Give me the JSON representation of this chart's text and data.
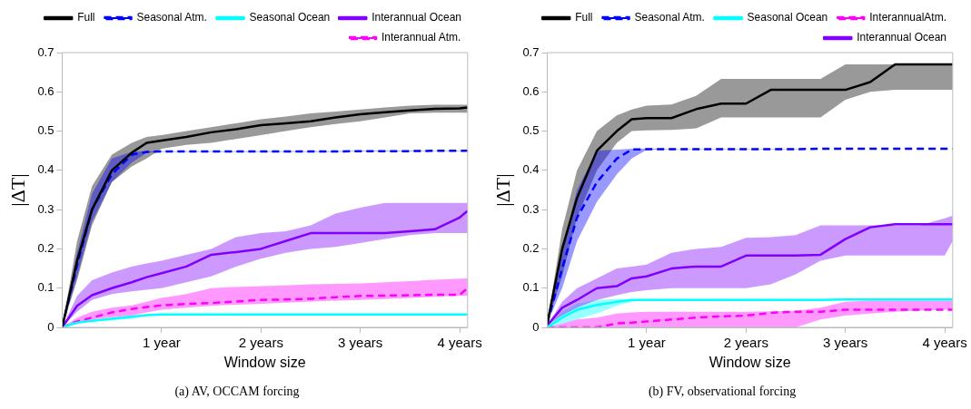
{
  "chart_data": [
    {
      "type": "line",
      "title": "(a) AV, OCCAM forcing",
      "xlabel": "Window size",
      "ylabel": "|ΔT|",
      "x": [
        0,
        0.15,
        0.3,
        0.5,
        0.7,
        0.85,
        1,
        1.25,
        1.5,
        1.75,
        2,
        2.25,
        2.5,
        2.75,
        3,
        3.25,
        3.5,
        3.75,
        4,
        4.08
      ],
      "xlim": [
        0,
        4.08
      ],
      "xticks": [
        {
          "value": 1,
          "label": "1 year"
        },
        {
          "value": 2,
          "label": "2 years"
        },
        {
          "value": 3,
          "label": "3 years"
        },
        {
          "value": 4,
          "label": "4 years"
        }
      ],
      "ylim": [
        0,
        0.7
      ],
      "yticks": [
        0,
        0.1,
        0.2,
        0.3,
        0.4,
        0.5,
        0.6,
        0.7
      ],
      "grid": false,
      "legend": "top right",
      "marker": "none",
      "series": [
        {
          "name": "Full",
          "color": "#000000",
          "line_style": "solid",
          "values": [
            0,
            0.17,
            0.3,
            0.4,
            0.445,
            0.47,
            0.476,
            0.485,
            0.497,
            0.505,
            0.515,
            0.52,
            0.525,
            0.535,
            0.543,
            0.548,
            0.553,
            0.557,
            0.558,
            0.56
          ],
          "upper": [
            0,
            0.22,
            0.36,
            0.44,
            0.47,
            0.485,
            0.49,
            0.5,
            0.51,
            0.52,
            0.53,
            0.537,
            0.545,
            0.55,
            0.555,
            0.56,
            0.565,
            0.567,
            0.567,
            0.567
          ],
          "lower": [
            0,
            0.12,
            0.26,
            0.37,
            0.41,
            0.43,
            0.455,
            0.465,
            0.47,
            0.48,
            0.49,
            0.5,
            0.51,
            0.518,
            0.525,
            0.535,
            0.545,
            0.547,
            0.547,
            0.547
          ]
        },
        {
          "name": "Seasonal Atm.",
          "color": "#0000ff",
          "line_style": "dashed",
          "values": [
            0,
            0.16,
            0.3,
            0.39,
            0.44,
            0.447,
            0.448,
            0.448,
            0.448,
            0.448,
            0.448,
            0.448,
            0.448,
            0.448,
            0.449,
            0.449,
            0.449,
            0.45,
            0.45,
            0.45
          ],
          "upper": [
            0,
            0.19,
            0.34,
            0.43,
            0.447,
            0.449,
            0.449,
            0.449,
            0.449,
            0.449,
            0.449,
            0.449,
            0.449,
            0.449,
            0.45,
            0.45,
            0.45,
            0.45,
            0.45,
            0.45
          ],
          "lower": [
            0,
            0.13,
            0.27,
            0.37,
            0.42,
            0.445,
            0.447,
            0.447,
            0.447,
            0.447,
            0.447,
            0.447,
            0.447,
            0.447,
            0.448,
            0.448,
            0.448,
            0.449,
            0.449,
            0.449
          ]
        },
        {
          "name": "Seasonal Ocean",
          "color": "#00ffff",
          "line_style": "solid",
          "values": [
            0,
            0.012,
            0.017,
            0.022,
            0.027,
            0.031,
            0.033,
            0.033,
            0.033,
            0.033,
            0.033,
            0.033,
            0.033,
            0.033,
            0.033,
            0.033,
            0.033,
            0.033,
            0.033,
            0.033
          ],
          "upper": [
            0,
            0.014,
            0.019,
            0.025,
            0.03,
            0.032,
            0.033,
            0.033,
            0.033,
            0.033,
            0.033,
            0.033,
            0.033,
            0.033,
            0.033,
            0.033,
            0.033,
            0.033,
            0.033,
            0.033
          ],
          "lower": [
            0,
            0.01,
            0.015,
            0.018,
            0.022,
            0.03,
            0.033,
            0.033,
            0.033,
            0.033,
            0.033,
            0.033,
            0.033,
            0.033,
            0.033,
            0.033,
            0.033,
            0.033,
            0.033,
            0.033
          ]
        },
        {
          "name": "Interannual Ocean",
          "color": "#8000ff",
          "line_style": "solid",
          "values": [
            0,
            0.055,
            0.082,
            0.1,
            0.115,
            0.128,
            0.138,
            0.155,
            0.185,
            0.192,
            0.2,
            0.22,
            0.24,
            0.24,
            0.24,
            0.24,
            0.245,
            0.25,
            0.28,
            0.297
          ],
          "upper": [
            0,
            0.08,
            0.12,
            0.14,
            0.155,
            0.163,
            0.17,
            0.185,
            0.2,
            0.23,
            0.24,
            0.245,
            0.26,
            0.29,
            0.305,
            0.317,
            0.317,
            0.317,
            0.317,
            0.317
          ],
          "lower": [
            0,
            0.04,
            0.07,
            0.085,
            0.092,
            0.096,
            0.1,
            0.115,
            0.13,
            0.155,
            0.175,
            0.19,
            0.2,
            0.205,
            0.215,
            0.225,
            0.235,
            0.24,
            0.24,
            0.24
          ]
        },
        {
          "name": "Interannual Atm.",
          "color": "#ff00ff",
          "line_style": "dashed",
          "values": [
            0,
            0.015,
            0.025,
            0.038,
            0.047,
            0.052,
            0.056,
            0.06,
            0.062,
            0.066,
            0.07,
            0.071,
            0.073,
            0.077,
            0.08,
            0.081,
            0.082,
            0.083,
            0.083,
            0.1
          ],
          "upper": [
            0,
            0.025,
            0.04,
            0.05,
            0.056,
            0.065,
            0.075,
            0.085,
            0.1,
            0.103,
            0.105,
            0.107,
            0.11,
            0.111,
            0.112,
            0.115,
            0.118,
            0.121,
            0.124,
            0.125
          ],
          "lower": [
            0,
            0.01,
            0.02,
            0.026,
            0.03,
            0.038,
            0.045,
            0.05,
            0.055,
            0.058,
            0.06,
            0.063,
            0.066,
            0.068,
            0.07,
            0.072,
            0.075,
            0.078,
            0.08,
            0.08
          ]
        }
      ]
    },
    {
      "type": "line",
      "title": "(b) FV, observational forcing",
      "xlabel": "Window size",
      "ylabel": "|ΔT|",
      "x": [
        0,
        0.15,
        0.3,
        0.5,
        0.7,
        0.85,
        1,
        1.25,
        1.5,
        1.75,
        2,
        2.25,
        2.5,
        2.75,
        3,
        3.25,
        3.5,
        3.75,
        4,
        4.08
      ],
      "xlim": [
        0,
        4.08
      ],
      "xticks": [
        {
          "value": 1,
          "label": "1 year"
        },
        {
          "value": 2,
          "label": "2 years"
        },
        {
          "value": 3,
          "label": "3 years"
        },
        {
          "value": 4,
          "label": "4 years"
        }
      ],
      "ylim": [
        0,
        0.7
      ],
      "yticks": [
        0,
        0.1,
        0.2,
        0.3,
        0.4,
        0.5,
        0.6,
        0.7
      ],
      "grid": false,
      "legend": "top right",
      "marker": "none",
      "series": [
        {
          "name": "Full",
          "color": "#000000",
          "line_style": "solid",
          "values": [
            0.01,
            0.2,
            0.33,
            0.45,
            0.5,
            0.53,
            0.533,
            0.533,
            0.556,
            0.57,
            0.57,
            0.605,
            0.605,
            0.605,
            0.605,
            0.625,
            0.67,
            0.67,
            0.67,
            0.67
          ],
          "upper": [
            0.01,
            0.25,
            0.4,
            0.5,
            0.54,
            0.555,
            0.565,
            0.568,
            0.59,
            0.633,
            0.633,
            0.633,
            0.633,
            0.633,
            0.67,
            0.67,
            0.67,
            0.67,
            0.67,
            0.67
          ],
          "lower": [
            0.01,
            0.13,
            0.28,
            0.4,
            0.47,
            0.5,
            0.502,
            0.503,
            0.507,
            0.535,
            0.535,
            0.535,
            0.535,
            0.535,
            0.58,
            0.6,
            0.605,
            0.605,
            0.605,
            0.605
          ]
        },
        {
          "name": "Seasonal Atm.",
          "color": "#0000ff",
          "line_style": "dashed",
          "values": [
            0.01,
            0.15,
            0.28,
            0.37,
            0.43,
            0.453,
            0.454,
            0.454,
            0.454,
            0.454,
            0.454,
            0.454,
            0.454,
            0.455,
            0.455,
            0.455,
            0.455,
            0.455,
            0.455,
            0.455
          ],
          "upper": [
            0.01,
            0.2,
            0.35,
            0.45,
            0.453,
            0.455,
            0.455,
            0.455,
            0.455,
            0.455,
            0.455,
            0.455,
            0.455,
            0.455,
            0.455,
            0.455,
            0.455,
            0.455,
            0.455,
            0.455
          ],
          "lower": [
            0.01,
            0.1,
            0.22,
            0.32,
            0.39,
            0.43,
            0.452,
            0.454,
            0.454,
            0.454,
            0.454,
            0.454,
            0.454,
            0.455,
            0.455,
            0.455,
            0.455,
            0.455,
            0.455,
            0.455
          ]
        },
        {
          "name": "Seasonal Ocean",
          "color": "#00ffff",
          "line_style": "solid",
          "values": [
            0,
            0.025,
            0.045,
            0.057,
            0.065,
            0.07,
            0.07,
            0.07,
            0.07,
            0.07,
            0.07,
            0.07,
            0.07,
            0.07,
            0.071,
            0.071,
            0.071,
            0.071,
            0.071,
            0.071
          ],
          "upper": [
            0,
            0.04,
            0.06,
            0.07,
            0.072,
            0.072,
            0.072,
            0.072,
            0.072,
            0.072,
            0.072,
            0.072,
            0.072,
            0.072,
            0.072,
            0.072,
            0.072,
            0.072,
            0.072,
            0.072
          ],
          "lower": [
            0,
            0.01,
            0.02,
            0.035,
            0.055,
            0.065,
            0.07,
            0.07,
            0.07,
            0.07,
            0.07,
            0.07,
            0.07,
            0.07,
            0.07,
            0.07,
            0.07,
            0.07,
            0.07,
            0.07
          ]
        },
        {
          "name": "InterannualAtm.",
          "color": "#ff00ff",
          "line_style": "dashed",
          "values": [
            0,
            0,
            0,
            0,
            0.01,
            0.012,
            0.015,
            0.02,
            0.025,
            0.028,
            0.03,
            0.037,
            0.04,
            0.04,
            0.045,
            0.045,
            0.045,
            0.045,
            0.045,
            0.045
          ],
          "upper": [
            0,
            0.01,
            0.02,
            0.025,
            0.035,
            0.038,
            0.04,
            0.04,
            0.04,
            0.04,
            0.04,
            0.041,
            0.042,
            0.05,
            0.065,
            0.068,
            0.068,
            0.068,
            0.068,
            0.068
          ],
          "lower": [
            0,
            0,
            0,
            0,
            0,
            0,
            0,
            0,
            0,
            0,
            0,
            0,
            0,
            0.02,
            0.03,
            0.035,
            0.04,
            0.043,
            0.045,
            0.045
          ]
        },
        {
          "name": "Interannual Ocean",
          "color": "#8000ff",
          "line_style": "solid",
          "values": [
            0.005,
            0.05,
            0.07,
            0.1,
            0.105,
            0.125,
            0.13,
            0.15,
            0.155,
            0.155,
            0.183,
            0.183,
            0.183,
            0.185,
            0.225,
            0.255,
            0.263,
            0.263,
            0.263,
            0.263
          ],
          "upper": [
            0.005,
            0.065,
            0.1,
            0.125,
            0.15,
            0.155,
            0.16,
            0.19,
            0.2,
            0.205,
            0.228,
            0.23,
            0.235,
            0.26,
            0.26,
            0.26,
            0.26,
            0.26,
            0.278,
            0.285
          ],
          "lower": [
            0.005,
            0.03,
            0.05,
            0.07,
            0.082,
            0.09,
            0.095,
            0.1,
            0.1,
            0.1,
            0.1,
            0.11,
            0.135,
            0.17,
            0.183,
            0.183,
            0.183,
            0.183,
            0.183,
            0.22
          ]
        }
      ]
    }
  ]
}
